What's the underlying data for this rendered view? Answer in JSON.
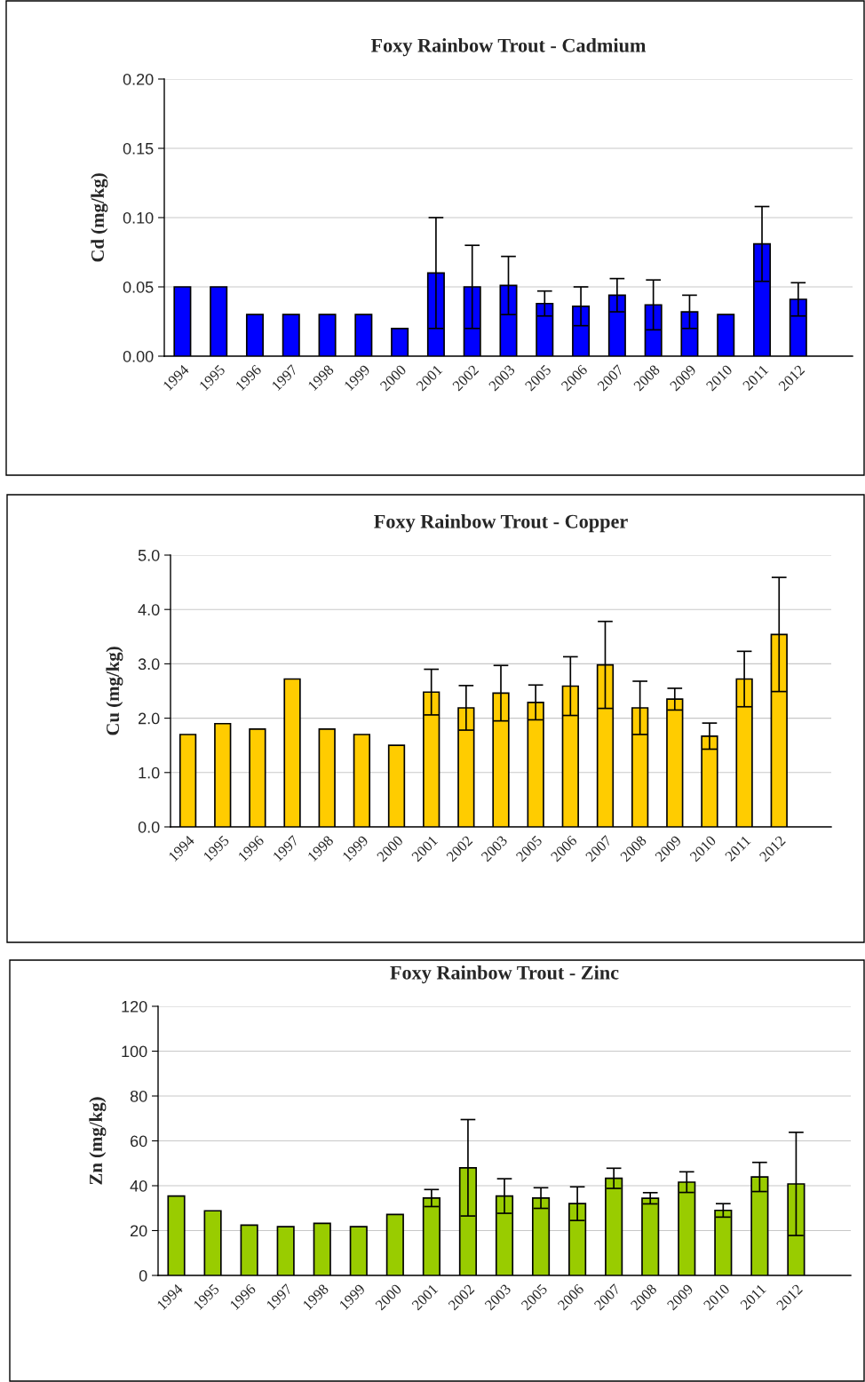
{
  "chart_data": [
    {
      "type": "bar",
      "title": "Foxy Rainbow Trout - Cadmium",
      "ylabel": "Cd (mg/kg)",
      "categories": [
        "1994",
        "1995",
        "1996",
        "1997",
        "1998",
        "1999",
        "2000",
        "2001",
        "2002",
        "2003",
        "2005",
        "2006",
        "2007",
        "2008",
        "2009",
        "2010",
        "2011",
        "2012",
        null
      ],
      "values": [
        0.05,
        0.05,
        0.03,
        0.03,
        0.03,
        0.03,
        0.02,
        0.06,
        0.05,
        0.051,
        0.038,
        0.036,
        0.044,
        0.037,
        0.032,
        0.03,
        0.081,
        0.041,
        null
      ],
      "errors": [
        null,
        null,
        null,
        null,
        null,
        null,
        null,
        0.04,
        0.03,
        0.021,
        0.009,
        0.014,
        0.012,
        0.018,
        0.012,
        null,
        0.027,
        0.012,
        null
      ],
      "color": "#0000ff",
      "ylim": [
        0,
        0.2
      ],
      "yticks": [
        {
          "value": 0,
          "label": "0.00"
        },
        {
          "value": 0.05,
          "label": "0.05"
        },
        {
          "value": 0.1,
          "label": "0.10"
        },
        {
          "value": 0.15,
          "label": "0.15"
        },
        {
          "value": 0.2,
          "label": "0.20"
        }
      ],
      "grid": "y",
      "legend": false
    },
    {
      "type": "bar",
      "title": "Foxy Rainbow Trout - Copper",
      "ylabel": "Cu (mg/kg)",
      "categories": [
        "1994",
        "1995",
        "1996",
        "1997",
        "1998",
        "1999",
        "2000",
        "2001",
        "2002",
        "2003",
        "2005",
        "2006",
        "2007",
        "2008",
        "2009",
        "2010",
        "2011",
        "2012",
        null
      ],
      "values": [
        1.7,
        1.9,
        1.8,
        2.72,
        1.8,
        1.7,
        1.5,
        2.48,
        2.19,
        2.46,
        2.29,
        2.59,
        2.98,
        2.19,
        2.35,
        1.67,
        2.72,
        3.54,
        null
      ],
      "errors": [
        null,
        null,
        null,
        null,
        null,
        null,
        null,
        0.42,
        0.41,
        0.51,
        0.32,
        0.54,
        0.8,
        0.49,
        0.2,
        0.24,
        0.51,
        1.05,
        null
      ],
      "color": "#ffcc00",
      "ylim": [
        0,
        5
      ],
      "yticks": [
        {
          "value": 0,
          "label": "0.0"
        },
        {
          "value": 1,
          "label": "1.0"
        },
        {
          "value": 2,
          "label": "2.0"
        },
        {
          "value": 3,
          "label": "3.0"
        },
        {
          "value": 4,
          "label": "4.0"
        },
        {
          "value": 5,
          "label": "5.0"
        }
      ],
      "grid": "y",
      "legend": false
    },
    {
      "type": "bar",
      "title": "Foxy Rainbow Trout - Zinc",
      "ylabel": "Zn (mg/kg)",
      "categories": [
        "1994",
        "1995",
        "1996",
        "1997",
        "1998",
        "1999",
        "2000",
        "2001",
        "2002",
        "2003",
        "2005",
        "2006",
        "2007",
        "2008",
        "2009",
        "2010",
        "2011",
        "2012",
        null
      ],
      "values": [
        35.4,
        28.8,
        22.4,
        21.7,
        23.2,
        21.7,
        27.2,
        34.5,
        48,
        35.4,
        34.5,
        32,
        43.3,
        34.4,
        41.6,
        29,
        43.9,
        40.8,
        null
      ],
      "errors": [
        null,
        null,
        null,
        null,
        null,
        null,
        null,
        3.8,
        21.5,
        7.7,
        4.6,
        7.5,
        4.5,
        2.5,
        4.6,
        3,
        6.5,
        23,
        null
      ],
      "color": "#99cc00",
      "ylim": [
        0,
        120
      ],
      "yticks": [
        0,
        20,
        40,
        60,
        80,
        100,
        120
      ],
      "grid": "y",
      "legend": false
    }
  ]
}
